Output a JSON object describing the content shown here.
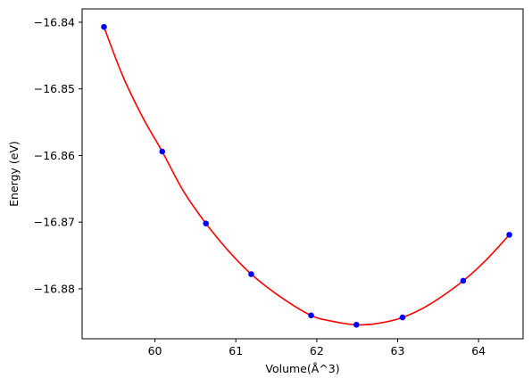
{
  "chart_data": {
    "type": "scatter",
    "title": "",
    "xlabel": "Volume(Å^3)",
    "ylabel": "Energy (eV)",
    "xlim": [
      59.1,
      64.55
    ],
    "ylim": [
      -16.8875,
      -16.838
    ],
    "x_ticks": [
      60,
      61,
      62,
      63,
      64
    ],
    "x_tick_labels": [
      "60",
      "61",
      "62",
      "63",
      "64"
    ],
    "y_ticks": [
      -16.84,
      -16.85,
      -16.86,
      -16.87,
      -16.88
    ],
    "y_tick_labels": [
      "−16.84",
      "−16.85",
      "−16.86",
      "−16.87",
      "−16.88"
    ],
    "grid": false,
    "series": [
      {
        "kind": "points",
        "color": "#0000ff",
        "x": [
          59.37,
          60.09,
          60.63,
          61.19,
          61.93,
          62.49,
          63.06,
          63.81,
          64.38
        ],
        "y": [
          -16.8407,
          -16.8594,
          -16.8702,
          -16.8778,
          -16.884,
          -16.8854,
          -16.8843,
          -16.8788,
          -16.8719
        ]
      },
      {
        "kind": "fit-curve",
        "color": "#ff0000",
        "x": [
          59.37,
          59.6,
          59.85,
          60.09,
          60.35,
          60.63,
          60.9,
          61.19,
          61.55,
          61.93,
          62.2,
          62.49,
          62.75,
          63.06,
          63.4,
          63.81,
          64.1,
          64.38
        ],
        "y": [
          -16.8407,
          -16.848,
          -16.8543,
          -16.8594,
          -16.8653,
          -16.8702,
          -16.8742,
          -16.8778,
          -16.8812,
          -16.884,
          -16.8849,
          -16.8854,
          -16.8852,
          -16.8843,
          -16.8823,
          -16.8788,
          -16.8756,
          -16.8719
        ]
      }
    ]
  }
}
